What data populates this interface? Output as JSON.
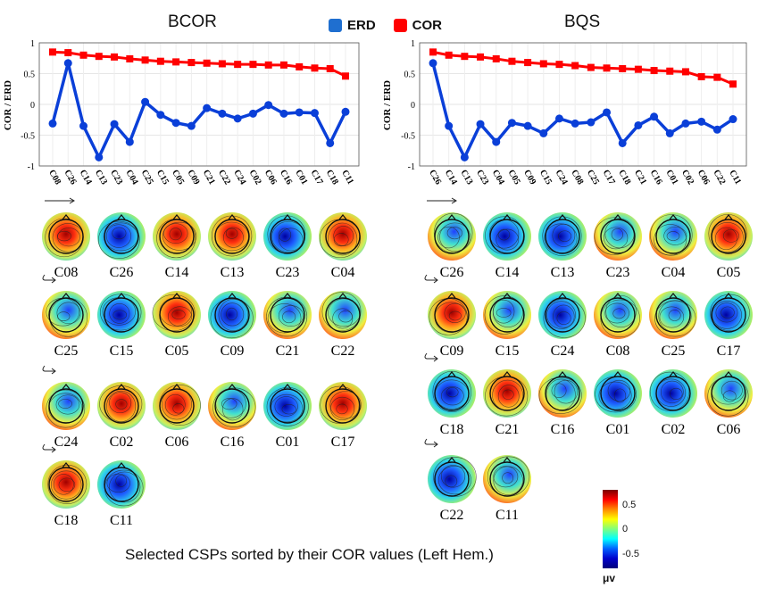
{
  "legend": {
    "erd_label": "ERD",
    "cor_label": "COR",
    "erd_color": "#0a3fd8",
    "cor_color": "#ff0000",
    "erd_swatch": "#1f6fd0",
    "cor_swatch": "#ff0000"
  },
  "caption": "Selected CSPs sorted by their COR values (Left Hem.)",
  "colorbar": {
    "ticks": [
      "0.5",
      "0",
      "-0.5"
    ],
    "unit": "μv",
    "range": [
      -0.8,
      0.8
    ]
  },
  "chart_data": [
    {
      "type": "line",
      "title": "BCOR",
      "ylabel": "COR / ERD",
      "ylim": [
        -1,
        1
      ],
      "yticks": [
        "1",
        "0.5",
        "0",
        "-0.5",
        "-1"
      ],
      "grid": true,
      "categories": [
        "C08",
        "C26",
        "C14",
        "C13",
        "C23",
        "C04",
        "C25",
        "C15",
        "C05",
        "C09",
        "C21",
        "C22",
        "C24",
        "C02",
        "C06",
        "C16",
        "C01",
        "C17",
        "C18",
        "C11"
      ],
      "series": [
        {
          "name": "COR",
          "marker": "square",
          "values": [
            0.85,
            0.84,
            0.8,
            0.78,
            0.77,
            0.74,
            0.72,
            0.7,
            0.69,
            0.68,
            0.67,
            0.66,
            0.65,
            0.65,
            0.64,
            0.64,
            0.61,
            0.59,
            0.58,
            0.46
          ]
        },
        {
          "name": "ERD",
          "marker": "circle",
          "values": [
            -0.31,
            0.67,
            -0.35,
            -0.86,
            -0.32,
            -0.61,
            0.04,
            -0.17,
            -0.3,
            -0.35,
            -0.06,
            -0.15,
            -0.23,
            -0.15,
            -0.01,
            -0.15,
            -0.13,
            -0.14,
            -0.63,
            -0.12
          ]
        }
      ],
      "topo_rows": [
        [
          "C08",
          "C26",
          "C14",
          "C13",
          "C23",
          "C04"
        ],
        [
          "C25",
          "C15",
          "C05",
          "C09",
          "C21",
          "C22"
        ],
        [
          "C24",
          "C02",
          "C06",
          "C16",
          "C01",
          "C17"
        ],
        [
          "C18",
          "C11"
        ]
      ]
    },
    {
      "type": "line",
      "title": "BQS",
      "ylabel": "COR / ERD",
      "ylim": [
        -1,
        1
      ],
      "yticks": [
        "1",
        "0.5",
        "0",
        "-0.5",
        "-1"
      ],
      "grid": true,
      "categories": [
        "C26",
        "C14",
        "C13",
        "C23",
        "C04",
        "C05",
        "C09",
        "C15",
        "C24",
        "C08",
        "C25",
        "C17",
        "C18",
        "C21",
        "C16",
        "C01",
        "C02",
        "C06",
        "C22",
        "C11"
      ],
      "series": [
        {
          "name": "COR",
          "marker": "square",
          "values": [
            0.85,
            0.8,
            0.78,
            0.77,
            0.74,
            0.7,
            0.68,
            0.66,
            0.65,
            0.63,
            0.6,
            0.59,
            0.58,
            0.57,
            0.55,
            0.54,
            0.53,
            0.45,
            0.44,
            0.33
          ]
        },
        {
          "name": "ERD",
          "marker": "circle",
          "values": [
            0.67,
            -0.35,
            -0.86,
            -0.32,
            -0.61,
            -0.3,
            -0.35,
            -0.47,
            -0.23,
            -0.31,
            -0.29,
            -0.13,
            -0.63,
            -0.34,
            -0.2,
            -0.47,
            -0.31,
            -0.28,
            -0.41,
            -0.24
          ]
        }
      ],
      "topo_rows": [
        [
          "C26",
          "C14",
          "C13",
          "C23",
          "C04",
          "C05"
        ],
        [
          "C09",
          "C15",
          "C24",
          "C08",
          "C25",
          "C17"
        ],
        [
          "C18",
          "C21",
          "C16",
          "C01",
          "C02",
          "C06"
        ],
        [
          "C22",
          "C11"
        ]
      ]
    }
  ]
}
